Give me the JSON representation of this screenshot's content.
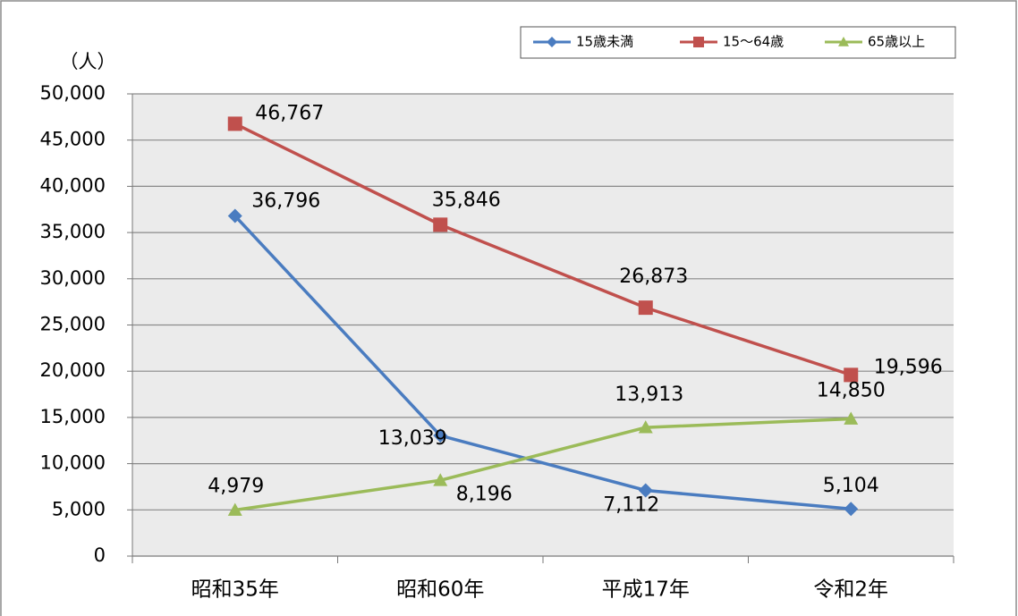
{
  "chart_data": {
    "type": "line",
    "y_axis_label": "（人）",
    "categories": [
      "昭和35年",
      "昭和60年",
      "平成17年",
      "令和2年"
    ],
    "series": [
      {
        "name": "15歳未満",
        "color": "#4a7cc0",
        "marker": "diamond",
        "values": [
          36796,
          13039,
          7112,
          5104
        ],
        "value_labels": [
          "36,796",
          "13,039",
          "7,112",
          "5,104"
        ]
      },
      {
        "name": "15～64歳",
        "color": "#c0504d",
        "marker": "square",
        "values": [
          46767,
          35846,
          26873,
          19596
        ],
        "value_labels": [
          "46,767",
          "35,846",
          "26,873",
          "19,596"
        ]
      },
      {
        "name": "65歳以上",
        "color": "#9bbb59",
        "marker": "triangle",
        "values": [
          4979,
          8196,
          13913,
          14850
        ],
        "value_labels": [
          "4,979",
          "8,196",
          "13,913",
          "14,850"
        ]
      }
    ],
    "ylim": [
      0,
      50000
    ],
    "yticks": [
      0,
      {
        "value": 5000,
        "label": "5,000"
      },
      {
        "value": 10000,
        "label": "10,000"
      },
      {
        "value": 15000,
        "label": "15,000"
      },
      {
        "value": 20000,
        "label": "20,000"
      },
      {
        "value": 25000,
        "label": "25,000"
      },
      {
        "value": 30000,
        "label": "30,000"
      },
      {
        "value": 35000,
        "label": "35,000"
      },
      {
        "value": 40000,
        "label": "40,000"
      },
      {
        "value": 45000,
        "label": "45,000"
      },
      {
        "value": 50000,
        "label": "50,000"
      }
    ],
    "grid": true,
    "legend": "top-right"
  }
}
